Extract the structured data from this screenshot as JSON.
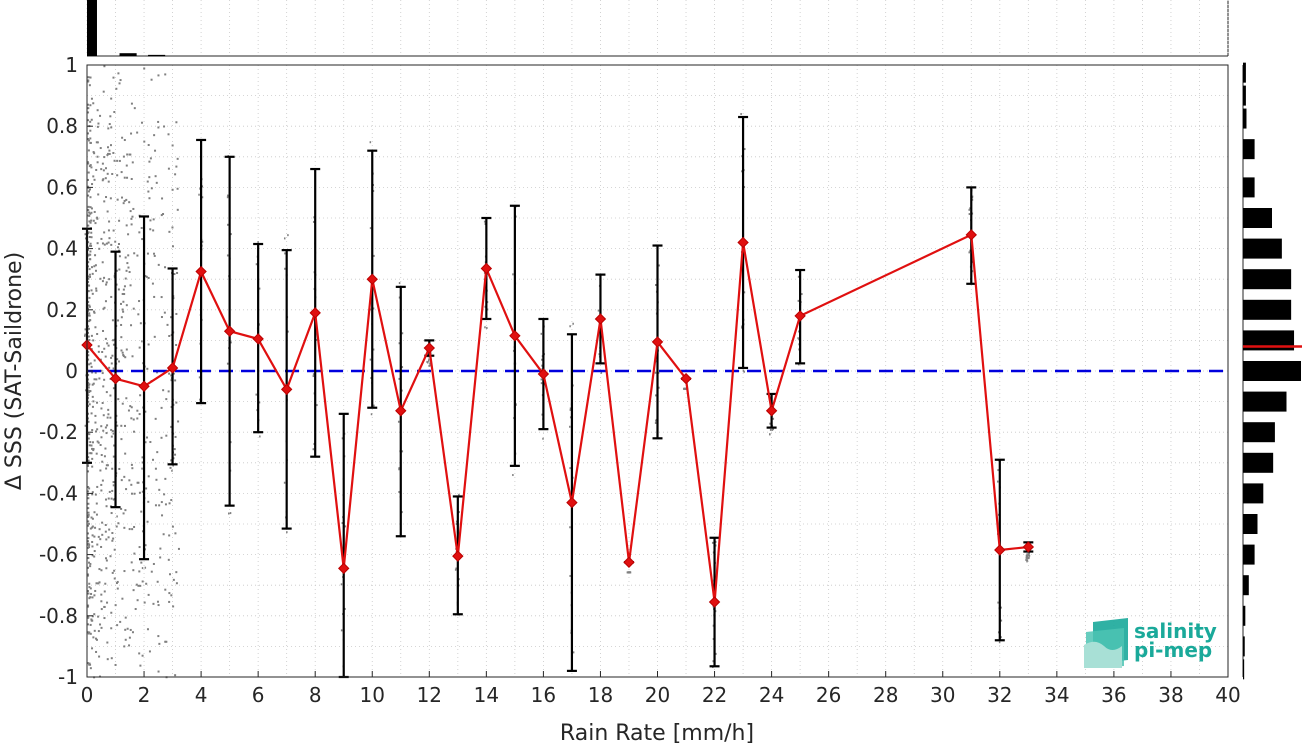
{
  "chart_data": {
    "type": "line",
    "xlabel": "Rain Rate [mm/h]",
    "ylabel": "Δ SSS (SAT-Saildrone)",
    "xlim": [
      0,
      40
    ],
    "ylim": [
      -1,
      1
    ],
    "xticks": [
      0,
      2,
      4,
      6,
      8,
      10,
      12,
      14,
      16,
      18,
      20,
      22,
      24,
      26,
      28,
      30,
      32,
      34,
      36,
      38,
      40
    ],
    "yticks": [
      -1,
      -0.8,
      -0.6,
      -0.4,
      -0.2,
      0,
      0.2,
      0.4,
      0.6,
      0.8,
      1
    ],
    "grid": true,
    "zero_line": {
      "y": 0,
      "color": "#0000dd",
      "style": "dashed"
    },
    "series": [
      {
        "type": "line-errorbar",
        "color": "#e01010",
        "x": [
          0,
          1,
          2,
          3,
          4,
          5,
          6,
          7,
          8,
          9,
          10,
          11,
          12,
          13,
          14,
          15,
          16,
          17,
          18,
          19,
          20,
          21,
          22,
          23,
          24,
          25,
          31,
          32,
          33
        ],
        "y": [
          0.085,
          -0.025,
          -0.05,
          0.01,
          0.325,
          0.13,
          0.105,
          -0.06,
          0.19,
          -0.645,
          0.3,
          -0.13,
          0.075,
          -0.605,
          0.335,
          0.115,
          -0.01,
          -0.43,
          0.17,
          -0.625,
          0.095,
          -0.025,
          -0.755,
          0.42,
          -0.13,
          0.18,
          0.445,
          -0.585,
          -0.575
        ],
        "lower": [
          -0.3,
          -0.445,
          -0.615,
          -0.305,
          -0.105,
          -0.44,
          -0.2,
          -0.515,
          -0.28,
          -1.0,
          -0.12,
          -0.54,
          0.05,
          -0.795,
          0.17,
          -0.31,
          -0.19,
          -0.98,
          0.025,
          -0.625,
          -0.22,
          -0.025,
          -0.965,
          0.01,
          -0.185,
          0.025,
          0.285,
          -0.88,
          -0.59
        ],
        "upper": [
          0.465,
          0.39,
          0.505,
          0.335,
          0.755,
          0.7,
          0.415,
          0.395,
          0.66,
          -0.14,
          0.72,
          0.275,
          0.1,
          -0.41,
          0.5,
          0.54,
          0.17,
          0.12,
          0.315,
          -0.625,
          0.41,
          -0.025,
          -0.545,
          0.83,
          -0.075,
          0.33,
          0.6,
          -0.29,
          -0.56
        ]
      }
    ],
    "scatter_color": "#808080",
    "top_histogram": {
      "bins": [
        0,
        1,
        2
      ],
      "relative_heights": [
        1.0,
        0.05,
        0.02
      ]
    },
    "right_histogram": {
      "y_centers": [
        0.975,
        0.9,
        0.825,
        0.725,
        0.6,
        0.5,
        0.4,
        0.3,
        0.2,
        0.1,
        0.0,
        -0.1,
        -0.2,
        -0.3,
        -0.4,
        -0.5,
        -0.6,
        -0.7,
        -0.8,
        -0.9,
        -0.975
      ],
      "relative_widths": [
        0.05,
        0.05,
        0.06,
        0.2,
        0.2,
        0.5,
        0.67,
        0.83,
        0.83,
        0.88,
        1.0,
        0.75,
        0.55,
        0.52,
        0.35,
        0.25,
        0.2,
        0.1,
        0.04,
        0.03,
        0.02
      ],
      "mean_marker": 0.08,
      "mean_color": "#e01010"
    }
  },
  "logo": {
    "line1": "salinity",
    "line2": "pi-mep",
    "color": "#1aa99a"
  }
}
